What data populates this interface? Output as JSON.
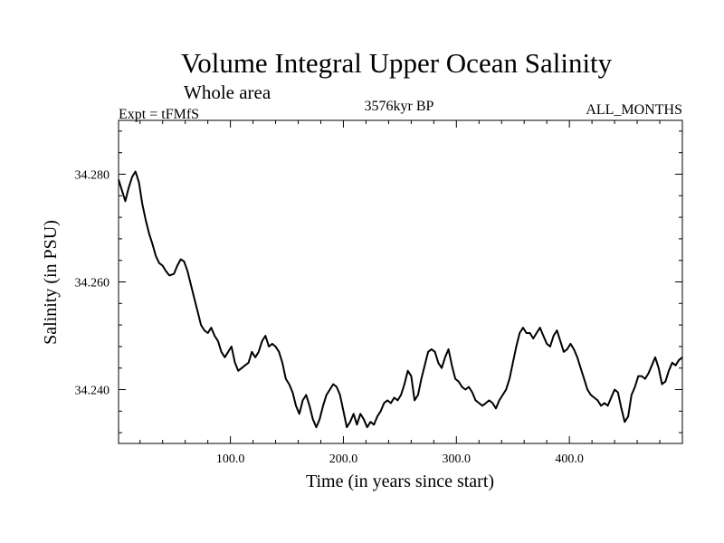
{
  "chart_data": {
    "type": "line",
    "title": "Volume Integral Upper Ocean Salinity",
    "subtitle": "Whole area",
    "experiment": "Expt = tFMfS",
    "period": "3576kyr BP",
    "months": "ALL_MONTHS",
    "xlabel": "Time (in years since start)",
    "ylabel": "Salinity (in PSU)",
    "xlim": [
      1,
      500
    ],
    "ylim": [
      34.23,
      34.29
    ],
    "xticks": [
      100,
      200,
      300,
      400
    ],
    "xtick_labels": [
      "100.0",
      "200.0",
      "300.0",
      "400.0"
    ],
    "yticks": [
      34.24,
      34.26,
      34.28
    ],
    "ytick_labels": [
      "34.240",
      "34.260",
      "34.280"
    ],
    "series": [
      {
        "name": "Salinity",
        "points": [
          [
            1,
            34.279
          ],
          [
            4,
            34.277
          ],
          [
            7,
            34.275
          ],
          [
            10,
            34.2775
          ],
          [
            13,
            34.2795
          ],
          [
            16,
            34.2805
          ],
          [
            19,
            34.2785
          ],
          [
            22,
            34.2745
          ],
          [
            25,
            34.2715
          ],
          [
            28,
            34.269
          ],
          [
            31,
            34.267
          ],
          [
            34,
            34.2648
          ],
          [
            37,
            34.2635
          ],
          [
            40,
            34.263
          ],
          [
            43,
            34.262
          ],
          [
            46,
            34.2612
          ],
          [
            50,
            34.2615
          ],
          [
            53,
            34.263
          ],
          [
            56,
            34.2642
          ],
          [
            59,
            34.2638
          ],
          [
            62,
            34.262
          ],
          [
            65,
            34.2595
          ],
          [
            68,
            34.257
          ],
          [
            71,
            34.2545
          ],
          [
            74,
            34.252
          ],
          [
            77,
            34.251
          ],
          [
            80,
            34.2505
          ],
          [
            83,
            34.2515
          ],
          [
            86,
            34.25
          ],
          [
            89,
            34.249
          ],
          [
            92,
            34.247
          ],
          [
            95,
            34.246
          ],
          [
            98,
            34.247
          ],
          [
            101,
            34.248
          ],
          [
            104,
            34.245
          ],
          [
            107,
            34.2435
          ],
          [
            110,
            34.244
          ],
          [
            113,
            34.2445
          ],
          [
            116,
            34.245
          ],
          [
            119,
            34.247
          ],
          [
            122,
            34.246
          ],
          [
            125,
            34.247
          ],
          [
            128,
            34.249
          ],
          [
            131,
            34.25
          ],
          [
            134,
            34.248
          ],
          [
            137,
            34.2485
          ],
          [
            140,
            34.248
          ],
          [
            143,
            34.247
          ],
          [
            146,
            34.245
          ],
          [
            149,
            34.242
          ],
          [
            152,
            34.241
          ],
          [
            155,
            34.2395
          ],
          [
            158,
            34.237
          ],
          [
            161,
            34.2355
          ],
          [
            164,
            34.238
          ],
          [
            167,
            34.239
          ],
          [
            170,
            34.237
          ],
          [
            173,
            34.2345
          ],
          [
            176,
            34.233
          ],
          [
            179,
            34.2345
          ],
          [
            182,
            34.237
          ],
          [
            185,
            34.239
          ],
          [
            188,
            34.24
          ],
          [
            191,
            34.241
          ],
          [
            194,
            34.2405
          ],
          [
            197,
            34.239
          ],
          [
            200,
            34.236
          ],
          [
            203,
            34.233
          ],
          [
            206,
            34.234
          ],
          [
            209,
            34.2355
          ],
          [
            212,
            34.2335
          ],
          [
            215,
            34.2355
          ],
          [
            218,
            34.2345
          ],
          [
            221,
            34.233
          ],
          [
            224,
            34.234
          ],
          [
            227,
            34.2335
          ],
          [
            230,
            34.235
          ],
          [
            233,
            34.236
          ],
          [
            236,
            34.2375
          ],
          [
            239,
            34.238
          ],
          [
            242,
            34.2375
          ],
          [
            245,
            34.2385
          ],
          [
            248,
            34.238
          ],
          [
            251,
            34.239
          ],
          [
            254,
            34.241
          ],
          [
            257,
            34.2435
          ],
          [
            260,
            34.2425
          ],
          [
            263,
            34.238
          ],
          [
            266,
            34.239
          ],
          [
            269,
            34.242
          ],
          [
            272,
            34.2445
          ],
          [
            275,
            34.247
          ],
          [
            278,
            34.2475
          ],
          [
            281,
            34.247
          ],
          [
            284,
            34.245
          ],
          [
            287,
            34.244
          ],
          [
            290,
            34.246
          ],
          [
            293,
            34.2475
          ],
          [
            296,
            34.2445
          ],
          [
            299,
            34.242
          ],
          [
            302,
            34.2415
          ],
          [
            305,
            34.2405
          ],
          [
            308,
            34.24
          ],
          [
            311,
            34.2405
          ],
          [
            314,
            34.2395
          ],
          [
            317,
            34.238
          ],
          [
            320,
            34.2375
          ],
          [
            323,
            34.237
          ],
          [
            326,
            34.2375
          ],
          [
            329,
            34.238
          ],
          [
            332,
            34.2375
          ],
          [
            335,
            34.2365
          ],
          [
            338,
            34.238
          ],
          [
            341,
            34.239
          ],
          [
            344,
            34.24
          ],
          [
            347,
            34.242
          ],
          [
            350,
            34.245
          ],
          [
            353,
            34.248
          ],
          [
            356,
            34.2505
          ],
          [
            359,
            34.2515
          ],
          [
            362,
            34.2505
          ],
          [
            365,
            34.2505
          ],
          [
            368,
            34.2495
          ],
          [
            371,
            34.2505
          ],
          [
            374,
            34.2515
          ],
          [
            377,
            34.25
          ],
          [
            380,
            34.2485
          ],
          [
            383,
            34.248
          ],
          [
            386,
            34.25
          ],
          [
            389,
            34.251
          ],
          [
            392,
            34.249
          ],
          [
            395,
            34.247
          ],
          [
            398,
            34.2475
          ],
          [
            401,
            34.2485
          ],
          [
            404,
            34.2475
          ],
          [
            407,
            34.246
          ],
          [
            410,
            34.244
          ],
          [
            413,
            34.242
          ],
          [
            416,
            34.24
          ],
          [
            419,
            34.239
          ],
          [
            422,
            34.2385
          ],
          [
            425,
            34.238
          ],
          [
            428,
            34.237
          ],
          [
            431,
            34.2375
          ],
          [
            434,
            34.237
          ],
          [
            437,
            34.2385
          ],
          [
            440,
            34.24
          ],
          [
            443,
            34.2395
          ],
          [
            446,
            34.2365
          ],
          [
            449,
            34.234
          ],
          [
            452,
            34.235
          ],
          [
            455,
            34.239
          ],
          [
            458,
            34.2405
          ],
          [
            461,
            34.2425
          ],
          [
            464,
            34.2425
          ],
          [
            467,
            34.242
          ],
          [
            470,
            34.243
          ],
          [
            473,
            34.2445
          ],
          [
            476,
            34.246
          ],
          [
            479,
            34.244
          ],
          [
            482,
            34.241
          ],
          [
            485,
            34.2415
          ],
          [
            488,
            34.2435
          ],
          [
            491,
            34.245
          ],
          [
            494,
            34.2445
          ],
          [
            497,
            34.2455
          ],
          [
            500,
            34.246
          ]
        ]
      }
    ]
  }
}
